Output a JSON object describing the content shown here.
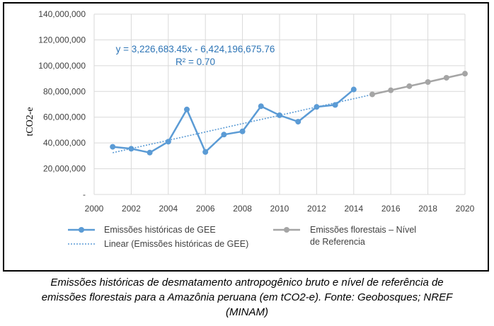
{
  "chart_data": {
    "type": "line",
    "ylabel": "tCO2-e",
    "ylim": [
      0,
      140000000
    ],
    "yticks": [
      "-",
      "20,000,000",
      "40,000,000",
      "60,000,000",
      "80,000,000",
      "100,000,000",
      "120,000,000",
      "140,000,000"
    ],
    "xlim": [
      2000,
      2020
    ],
    "xticks": [
      "2000",
      "2002",
      "2004",
      "2006",
      "2008",
      "2010",
      "2012",
      "2014",
      "2016",
      "2018",
      "2020"
    ],
    "grid": true,
    "series": [
      {
        "name": "Emissões históricas de GEE",
        "color": "#5b9bd5",
        "x": [
          2001,
          2002,
          2003,
          2004,
          2005,
          2006,
          2007,
          2008,
          2009,
          2010,
          2011,
          2012,
          2013,
          2014
        ],
        "y": [
          37000000,
          35500000,
          32500000,
          41000000,
          66000000,
          33000000,
          46500000,
          49000000,
          68500000,
          61500000,
          56500000,
          68000000,
          69500000,
          81500000
        ]
      },
      {
        "name": "Emissões florestais – Nível de Referencia",
        "color": "#a5a5a5",
        "x": [
          2015,
          2016,
          2017,
          2018,
          2019,
          2020
        ],
        "y": [
          77700000,
          80900000,
          84100000,
          87300000,
          90600000,
          93800000
        ]
      }
    ],
    "trendline": {
      "name": "Linear (Emissões históricas de GEE)",
      "color": "#5b9bd5",
      "slope": 3226683.45,
      "intercept": -6424196675.76,
      "x_range": [
        2001,
        2015
      ],
      "equation": "y = 3,226,683.45x - 6,424,196,675.76",
      "r2": "R² = 0.70"
    },
    "legend": {
      "placement": "bottom",
      "items": [
        "Emissões históricas de GEE",
        "Linear (Emissões históricas de GEE)",
        "Emissões florestais – Nível",
        "de Referencia"
      ]
    }
  },
  "caption": {
    "line1": "Emissões históricas de desmatamento antropogênico bruto e nível de referência de",
    "line2": "emissões florestais para a Amazônia peruana (em tCO2-e). Fonte: Geobosques; NREF",
    "line3": "(MINAM)"
  }
}
